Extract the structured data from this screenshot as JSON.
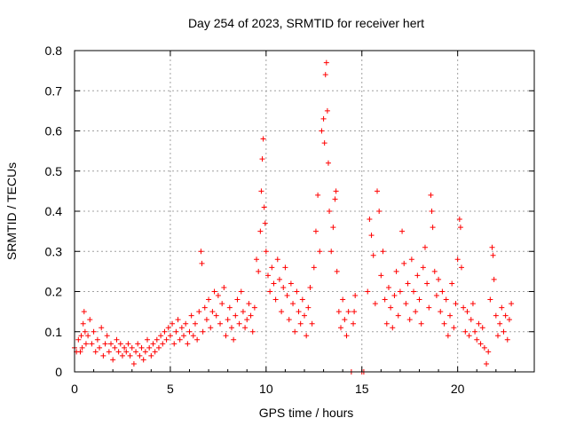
{
  "chart_data": {
    "type": "scatter",
    "title": "Day 254 of 2023, SRMTID for receiver hert",
    "xlabel": "GPS time / hours",
    "ylabel": "SRMTID / TECUs",
    "xlim": [
      0,
      24
    ],
    "ylim": [
      0,
      0.8
    ],
    "xticks": [
      0,
      5,
      10,
      15,
      20
    ],
    "xtick_labels": [
      "0",
      "5",
      "10",
      "15",
      "20"
    ],
    "yticks": [
      0,
      0.1,
      0.2,
      0.3,
      0.4,
      0.5,
      0.6,
      0.7,
      0.8
    ],
    "ytick_labels": [
      "0",
      "0.1",
      "0.2",
      "0.3",
      "0.4",
      "0.5",
      "0.6",
      "0.7",
      "0.8"
    ],
    "grid": true,
    "marker": "plus",
    "color": "#ff0000",
    "series": [
      {
        "name": "SRMTID",
        "points": [
          [
            0.0,
            0.06
          ],
          [
            0.1,
            0.05
          ],
          [
            0.2,
            0.08
          ],
          [
            0.3,
            0.05
          ],
          [
            0.35,
            0.09
          ],
          [
            0.4,
            0.06
          ],
          [
            0.45,
            0.12
          ],
          [
            0.5,
            0.15
          ],
          [
            0.55,
            0.1
          ],
          [
            0.6,
            0.07
          ],
          [
            0.7,
            0.09
          ],
          [
            0.8,
            0.13
          ],
          [
            0.9,
            0.07
          ],
          [
            1.0,
            0.1
          ],
          [
            1.1,
            0.05
          ],
          [
            1.2,
            0.08
          ],
          [
            1.3,
            0.06
          ],
          [
            1.4,
            0.11
          ],
          [
            1.5,
            0.04
          ],
          [
            1.6,
            0.07
          ],
          [
            1.7,
            0.09
          ],
          [
            1.8,
            0.05
          ],
          [
            1.9,
            0.07
          ],
          [
            2.0,
            0.03
          ],
          [
            2.1,
            0.06
          ],
          [
            2.2,
            0.08
          ],
          [
            2.3,
            0.05
          ],
          [
            2.4,
            0.07
          ],
          [
            2.5,
            0.04
          ],
          [
            2.6,
            0.06
          ],
          [
            2.7,
            0.05
          ],
          [
            2.8,
            0.07
          ],
          [
            2.9,
            0.04
          ],
          [
            3.0,
            0.06
          ],
          [
            3.1,
            0.02
          ],
          [
            3.2,
            0.05
          ],
          [
            3.3,
            0.07
          ],
          [
            3.4,
            0.04
          ],
          [
            3.5,
            0.06
          ],
          [
            3.6,
            0.03
          ],
          [
            3.7,
            0.05
          ],
          [
            3.8,
            0.08
          ],
          [
            3.9,
            0.06
          ],
          [
            4.0,
            0.04
          ],
          [
            4.1,
            0.07
          ],
          [
            4.2,
            0.05
          ],
          [
            4.3,
            0.08
          ],
          [
            4.4,
            0.06
          ],
          [
            4.5,
            0.09
          ],
          [
            4.6,
            0.07
          ],
          [
            4.7,
            0.1
          ],
          [
            4.8,
            0.08
          ],
          [
            4.9,
            0.11
          ],
          [
            5.0,
            0.09
          ],
          [
            5.1,
            0.12
          ],
          [
            5.2,
            0.07
          ],
          [
            5.3,
            0.1
          ],
          [
            5.4,
            0.13
          ],
          [
            5.5,
            0.08
          ],
          [
            5.6,
            0.11
          ],
          [
            5.7,
            0.09
          ],
          [
            5.8,
            0.12
          ],
          [
            5.9,
            0.07
          ],
          [
            6.0,
            0.1
          ],
          [
            6.1,
            0.14
          ],
          [
            6.2,
            0.09
          ],
          [
            6.3,
            0.12
          ],
          [
            6.4,
            0.08
          ],
          [
            6.5,
            0.15
          ],
          [
            6.6,
            0.3
          ],
          [
            6.65,
            0.27
          ],
          [
            6.7,
            0.1
          ],
          [
            6.8,
            0.16
          ],
          [
            6.9,
            0.13
          ],
          [
            7.0,
            0.18
          ],
          [
            7.1,
            0.11
          ],
          [
            7.2,
            0.15
          ],
          [
            7.3,
            0.2
          ],
          [
            7.4,
            0.14
          ],
          [
            7.5,
            0.19
          ],
          [
            7.6,
            0.12
          ],
          [
            7.7,
            0.17
          ],
          [
            7.8,
            0.21
          ],
          [
            7.9,
            0.09
          ],
          [
            8.0,
            0.13
          ],
          [
            8.1,
            0.16
          ],
          [
            8.2,
            0.11
          ],
          [
            8.3,
            0.08
          ],
          [
            8.4,
            0.14
          ],
          [
            8.5,
            0.18
          ],
          [
            8.6,
            0.12
          ],
          [
            8.7,
            0.2
          ],
          [
            8.8,
            0.15
          ],
          [
            8.9,
            0.11
          ],
          [
            9.0,
            0.13
          ],
          [
            9.1,
            0.17
          ],
          [
            9.2,
            0.14
          ],
          [
            9.3,
            0.1
          ],
          [
            9.4,
            0.16
          ],
          [
            9.5,
            0.28
          ],
          [
            9.6,
            0.25
          ],
          [
            9.7,
            0.35
          ],
          [
            9.75,
            0.45
          ],
          [
            9.8,
            0.53
          ],
          [
            9.85,
            0.58
          ],
          [
            9.9,
            0.41
          ],
          [
            9.95,
            0.37
          ],
          [
            10.0,
            0.3
          ],
          [
            10.1,
            0.24
          ],
          [
            10.2,
            0.2
          ],
          [
            10.3,
            0.26
          ],
          [
            10.4,
            0.22
          ],
          [
            10.5,
            0.18
          ],
          [
            10.6,
            0.28
          ],
          [
            10.7,
            0.23
          ],
          [
            10.8,
            0.15
          ],
          [
            10.9,
            0.21
          ],
          [
            11.0,
            0.26
          ],
          [
            11.1,
            0.19
          ],
          [
            11.2,
            0.13
          ],
          [
            11.3,
            0.22
          ],
          [
            11.4,
            0.17
          ],
          [
            11.5,
            0.1
          ],
          [
            11.6,
            0.2
          ],
          [
            11.7,
            0.15
          ],
          [
            11.8,
            0.12
          ],
          [
            11.9,
            0.18
          ],
          [
            12.0,
            0.14
          ],
          [
            12.1,
            0.09
          ],
          [
            12.2,
            0.16
          ],
          [
            12.3,
            0.21
          ],
          [
            12.4,
            0.12
          ],
          [
            12.5,
            0.26
          ],
          [
            12.6,
            0.35
          ],
          [
            12.7,
            0.44
          ],
          [
            12.8,
            0.3
          ],
          [
            12.9,
            0.6
          ],
          [
            13.0,
            0.63
          ],
          [
            13.05,
            0.57
          ],
          [
            13.1,
            0.74
          ],
          [
            13.15,
            0.77
          ],
          [
            13.2,
            0.65
          ],
          [
            13.25,
            0.52
          ],
          [
            13.3,
            0.4
          ],
          [
            13.4,
            0.3
          ],
          [
            13.5,
            0.36
          ],
          [
            13.6,
            0.43
          ],
          [
            13.65,
            0.45
          ],
          [
            13.7,
            0.25
          ],
          [
            13.8,
            0.15
          ],
          [
            13.9,
            0.11
          ],
          [
            14.0,
            0.18
          ],
          [
            14.1,
            0.13
          ],
          [
            14.2,
            0.09
          ],
          [
            14.3,
            0.15
          ],
          [
            14.45,
            0.0
          ],
          [
            14.55,
            0.12
          ],
          [
            14.6,
            0.15
          ],
          [
            14.65,
            0.19
          ],
          [
            15.0,
            0.0
          ],
          [
            15.1,
            0.0
          ],
          [
            15.3,
            0.2
          ],
          [
            15.4,
            0.38
          ],
          [
            15.5,
            0.34
          ],
          [
            15.6,
            0.29
          ],
          [
            15.7,
            0.17
          ],
          [
            15.8,
            0.45
          ],
          [
            15.9,
            0.4
          ],
          [
            16.0,
            0.24
          ],
          [
            16.1,
            0.3
          ],
          [
            16.2,
            0.18
          ],
          [
            16.3,
            0.12
          ],
          [
            16.4,
            0.21
          ],
          [
            16.5,
            0.16
          ],
          [
            16.6,
            0.11
          ],
          [
            16.7,
            0.19
          ],
          [
            16.8,
            0.25
          ],
          [
            16.9,
            0.14
          ],
          [
            17.0,
            0.2
          ],
          [
            17.1,
            0.35
          ],
          [
            17.2,
            0.27
          ],
          [
            17.3,
            0.17
          ],
          [
            17.4,
            0.22
          ],
          [
            17.5,
            0.13
          ],
          [
            17.6,
            0.28
          ],
          [
            17.7,
            0.2
          ],
          [
            17.8,
            0.15
          ],
          [
            17.9,
            0.24
          ],
          [
            18.0,
            0.18
          ],
          [
            18.1,
            0.12
          ],
          [
            18.2,
            0.26
          ],
          [
            18.3,
            0.31
          ],
          [
            18.4,
            0.22
          ],
          [
            18.5,
            0.16
          ],
          [
            18.6,
            0.44
          ],
          [
            18.65,
            0.4
          ],
          [
            18.7,
            0.36
          ],
          [
            18.8,
            0.25
          ],
          [
            18.9,
            0.19
          ],
          [
            19.0,
            0.23
          ],
          [
            19.1,
            0.15
          ],
          [
            19.2,
            0.2
          ],
          [
            19.3,
            0.12
          ],
          [
            19.4,
            0.18
          ],
          [
            19.5,
            0.09
          ],
          [
            19.6,
            0.14
          ],
          [
            19.7,
            0.22
          ],
          [
            19.8,
            0.11
          ],
          [
            19.9,
            0.17
          ],
          [
            20.0,
            0.28
          ],
          [
            20.1,
            0.38
          ],
          [
            20.15,
            0.36
          ],
          [
            20.2,
            0.26
          ],
          [
            20.3,
            0.16
          ],
          [
            20.4,
            0.1
          ],
          [
            20.5,
            0.15
          ],
          [
            20.6,
            0.09
          ],
          [
            20.7,
            0.13
          ],
          [
            20.8,
            0.17
          ],
          [
            20.9,
            0.1
          ],
          [
            21.0,
            0.08
          ],
          [
            21.1,
            0.12
          ],
          [
            21.2,
            0.07
          ],
          [
            21.3,
            0.11
          ],
          [
            21.4,
            0.06
          ],
          [
            21.5,
            0.02
          ],
          [
            21.6,
            0.05
          ],
          [
            21.7,
            0.18
          ],
          [
            21.8,
            0.31
          ],
          [
            21.85,
            0.29
          ],
          [
            21.9,
            0.23
          ],
          [
            22.0,
            0.14
          ],
          [
            22.1,
            0.09
          ],
          [
            22.2,
            0.12
          ],
          [
            22.3,
            0.16
          ],
          [
            22.4,
            0.1
          ],
          [
            22.5,
            0.14
          ],
          [
            22.6,
            0.08
          ],
          [
            22.7,
            0.13
          ],
          [
            22.8,
            0.17
          ]
        ]
      }
    ]
  }
}
